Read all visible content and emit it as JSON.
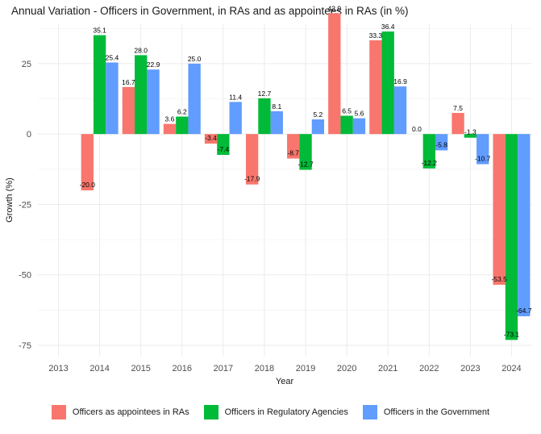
{
  "chart_data": {
    "type": "bar",
    "title": "Annual Variation - Officers in Government, in RAs and as appointees in RAs (in %)",
    "xlabel": "Year",
    "ylabel": "Growth (%)",
    "categories": [
      "2013",
      "2014",
      "2015",
      "2016",
      "2017",
      "2018",
      "2019",
      "2020",
      "2021",
      "2022",
      "2023",
      "2024"
    ],
    "ylim": [
      -79,
      39
    ],
    "yticks": [
      -75,
      -50,
      -25,
      0,
      25
    ],
    "grid": true,
    "legend_position": "bottom",
    "series": [
      {
        "name": "Officers as appointees in RAs",
        "color": "#F8766D",
        "values": [
          null,
          -20.0,
          16.7,
          3.6,
          -3.4,
          -17.9,
          -8.7,
          42.9,
          33.3,
          0.0,
          7.5,
          -53.5
        ],
        "labels": [
          null,
          "-20.0",
          "16.7",
          "3.6",
          "-3.4",
          "-17.9",
          "-8.7",
          "42.9",
          "33.3",
          "0.0",
          "7.5",
          "-53.5"
        ]
      },
      {
        "name": "Officers in Regulatory Agencies",
        "color": "#00BA38",
        "values": [
          null,
          35.1,
          28.0,
          6.2,
          -7.4,
          12.7,
          -12.7,
          6.5,
          36.4,
          -12.2,
          -1.3,
          -73.1
        ],
        "labels": [
          null,
          "35.1",
          "28.0",
          "6.2",
          "-7.4",
          "12.7",
          "-12.7",
          "6.5",
          "36.4",
          "-12.2",
          "-1.3",
          "-73.1"
        ]
      },
      {
        "name": "Officers in the Government",
        "color": "#619CFF",
        "values": [
          null,
          25.4,
          22.9,
          25.0,
          11.4,
          8.1,
          5.2,
          5.6,
          16.9,
          -5.8,
          -10.7,
          -64.7
        ],
        "labels": [
          null,
          "25.4",
          "22.9",
          "25.0",
          "11.4",
          "8.1",
          "5.2",
          "5.6",
          "16.9",
          "-5.8",
          "-10.7",
          "-64.7"
        ]
      }
    ]
  }
}
